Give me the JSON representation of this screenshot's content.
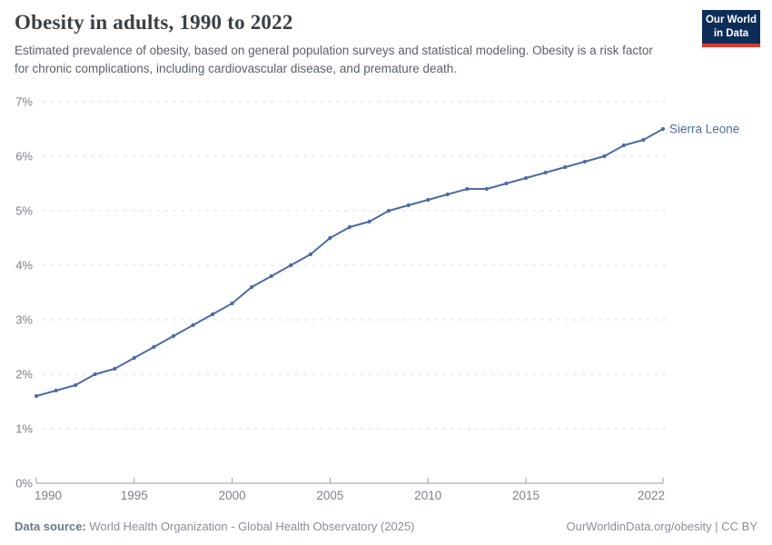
{
  "header": {
    "title": "Obesity in adults, 1990 to 2022",
    "subtitle": "Estimated prevalence of obesity, based on general population surveys and statistical modeling. Obesity is a risk factor for chronic complications, including cardiovascular disease, and premature death.",
    "logo": {
      "line1": "Our World",
      "line2": "in Data",
      "bg_color": "#0d2d58",
      "accent_color": "#dc3a2f"
    }
  },
  "chart_data": {
    "type": "line",
    "title": "Obesity in adults, 1990 to 2022",
    "xlabel": "",
    "ylabel": "",
    "xlim": [
      1990,
      2022
    ],
    "ylim": [
      0,
      7
    ],
    "grid": "horizontal-dashed",
    "legend_position": "end-of-line-label",
    "x_ticks": [
      1990,
      1995,
      2000,
      2005,
      2010,
      2015,
      2022
    ],
    "y_ticks": [
      "0%",
      "1%",
      "2%",
      "3%",
      "4%",
      "5%",
      "6%",
      "7%"
    ],
    "series": [
      {
        "name": "Sierra Leone",
        "color": "#4C6BA5",
        "x": [
          1990,
          1991,
          1992,
          1993,
          1994,
          1995,
          1996,
          1997,
          1998,
          1999,
          2000,
          2001,
          2002,
          2003,
          2004,
          2005,
          2006,
          2007,
          2008,
          2009,
          2010,
          2011,
          2012,
          2013,
          2014,
          2015,
          2016,
          2017,
          2018,
          2019,
          2020,
          2021,
          2022
        ],
        "values": [
          1.6,
          1.7,
          1.8,
          2.0,
          2.1,
          2.3,
          2.5,
          2.7,
          2.9,
          3.1,
          3.3,
          3.6,
          3.8,
          4.0,
          4.2,
          4.5,
          4.7,
          4.8,
          5.0,
          5.1,
          5.2,
          5.3,
          5.4,
          5.4,
          5.5,
          5.6,
          5.7,
          5.8,
          5.9,
          6.0,
          6.2,
          6.3,
          6.5
        ]
      }
    ],
    "colors": {
      "gridline": "#e2e2e2",
      "axis": "#9d9d9d",
      "tick_label": "#7d8287"
    }
  },
  "footer": {
    "datasource_label": "Data source:",
    "datasource_text": " World Health Organization - Global Health Observatory (2025)",
    "rights": "OurWorldinData.org/obesity | CC BY"
  }
}
